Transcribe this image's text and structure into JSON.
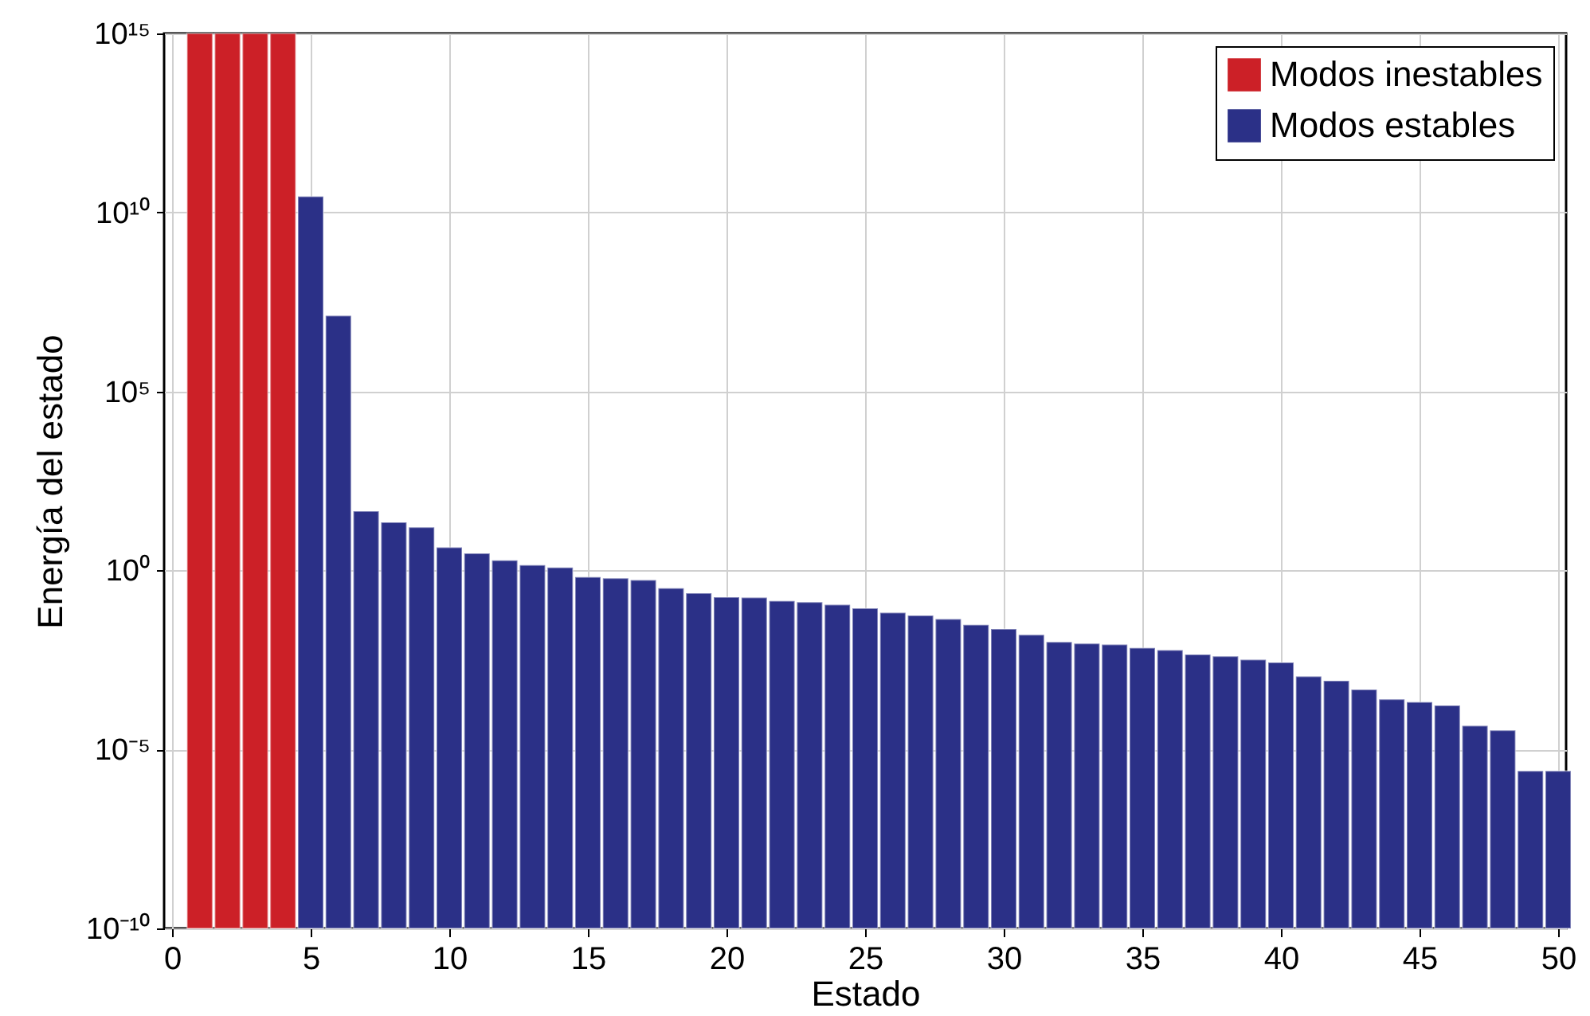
{
  "chart_data": {
    "type": "bar",
    "xlabel": "Estado",
    "ylabel": "Energía del estado",
    "x": [
      1,
      2,
      3,
      4,
      5,
      6,
      7,
      8,
      9,
      10,
      11,
      12,
      13,
      14,
      15,
      16,
      17,
      18,
      19,
      20,
      21,
      22,
      23,
      24,
      25,
      26,
      27,
      28,
      29,
      30,
      31,
      32,
      33,
      34,
      35,
      36,
      37,
      38,
      39,
      40,
      41,
      42,
      43,
      44,
      45,
      46,
      47,
      48,
      49,
      50
    ],
    "series": [
      {
        "name": "Modos inestables",
        "color": "#cc2027",
        "values": [
          1000000000000000.0,
          1000000000000000.0,
          1000000000000000.0,
          1000000000000000.0,
          null,
          null,
          null,
          null,
          null,
          null,
          null,
          null,
          null,
          null,
          null,
          null,
          null,
          null,
          null,
          null,
          null,
          null,
          null,
          null,
          null,
          null,
          null,
          null,
          null,
          null,
          null,
          null,
          null,
          null,
          null,
          null,
          null,
          null,
          null,
          null,
          null,
          null,
          null,
          null,
          null,
          null,
          null,
          null,
          null,
          null
        ]
      },
      {
        "name": "Modos estables",
        "color": "#2b3087",
        "values": [
          null,
          null,
          null,
          null,
          28000000000.0,
          13000000.0,
          45,
          22,
          16,
          4.4,
          3.0,
          1.9,
          1.4,
          1.2,
          0.65,
          0.6,
          0.54,
          0.32,
          0.23,
          0.18,
          0.175,
          0.14,
          0.13,
          0.11,
          0.087,
          0.066,
          0.055,
          0.044,
          0.03,
          0.023,
          0.016,
          0.01,
          0.0091,
          0.0085,
          0.0068,
          0.0059,
          0.0045,
          0.004,
          0.0032,
          0.0027,
          0.0011,
          0.00083,
          0.00047,
          0.00025,
          0.00021,
          0.00017,
          4.6e-05,
          3.4e-05,
          2.5e-06,
          2.5e-06
        ]
      }
    ],
    "log": true,
    "xlim": [
      0,
      50
    ],
    "xticks": [
      0,
      5,
      10,
      15,
      20,
      25,
      30,
      35,
      40,
      45,
      50
    ],
    "ylim": [
      1e-10,
      1000000000000000.0
    ],
    "yticks": [
      {
        "value": 1e-10,
        "label": "10⁻¹⁰"
      },
      {
        "value": 1e-05,
        "label": "10⁻⁵"
      },
      {
        "value": 1,
        "label": "10⁰"
      },
      {
        "value": 100000.0,
        "label": "10⁵"
      },
      {
        "value": 10000000000.0,
        "label": "10¹⁰"
      },
      {
        "value": 1000000000000000.0,
        "label": "10¹⁵"
      }
    ],
    "grid": true,
    "legend": "top right"
  }
}
